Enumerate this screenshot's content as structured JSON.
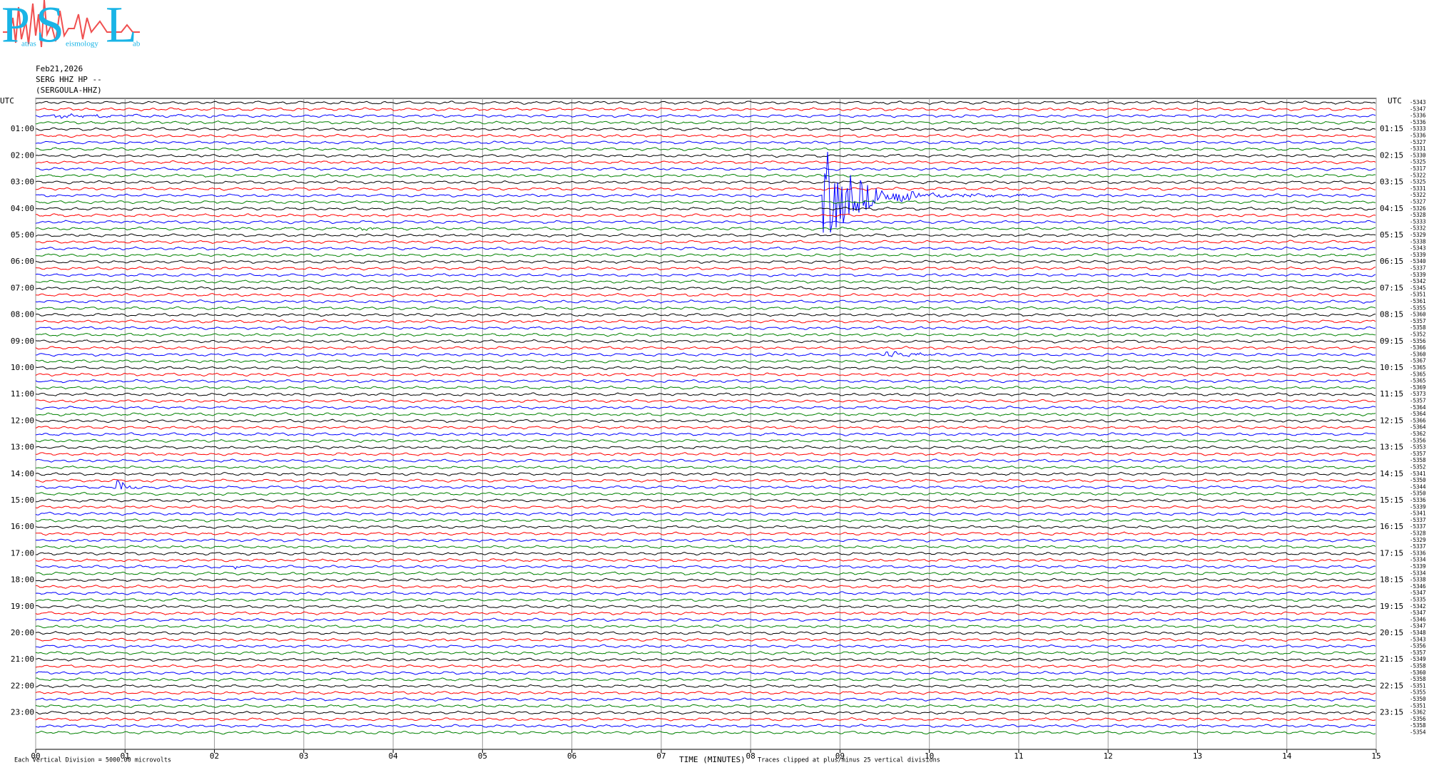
{
  "chart_data": {
    "type": "helicorder",
    "logo": {
      "letters": [
        "P",
        "S",
        "L"
      ],
      "words": [
        "atras",
        "eismology",
        "ab"
      ]
    },
    "date": "Feb21,2026",
    "station": "SERG HHZ HP --",
    "station_name": "(SERGOULA-HHZ)",
    "left_header": "UTC",
    "right_header": "UTC",
    "left_labels": [
      "01:00",
      "02:00",
      "03:00",
      "04:00",
      "05:00",
      "06:00",
      "07:00",
      "08:00",
      "09:00",
      "10:00",
      "11:00",
      "12:00",
      "13:00",
      "14:00",
      "15:00",
      "16:00",
      "17:00",
      "18:00",
      "19:00",
      "20:00",
      "21:00",
      "22:00",
      "23:00"
    ],
    "right_labels": [
      "01:15",
      "02:15",
      "03:15",
      "04:15",
      "05:15",
      "06:15",
      "07:15",
      "08:15",
      "09:15",
      "10:15",
      "11:15",
      "12:15",
      "13:15",
      "14:15",
      "15:15",
      "16:15",
      "17:15",
      "18:15",
      "19:15",
      "20:15",
      "21:15",
      "22:15",
      "23:15"
    ],
    "trace_offsets": [
      -5343,
      -5347,
      -5336,
      -5336,
      -5333,
      -5336,
      -5327,
      -5331,
      -5330,
      -5325,
      -5317,
      -5322,
      -5325,
      -5331,
      -5322,
      -5327,
      -5326,
      -5328,
      -5333,
      -5332,
      -5329,
      -5338,
      -5343,
      -5339,
      -5340,
      -5337,
      -5339,
      -5342,
      -5345,
      -5351,
      -5361,
      -5355,
      -5360,
      -5357,
      -5358,
      -5352,
      -5356,
      -5366,
      -5360,
      -5367,
      -5365,
      -5365,
      -5365,
      -5369,
      -5373,
      -5357,
      -5364,
      -5364,
      -5366,
      -5364,
      -5362,
      -5356,
      -5353,
      -5357,
      -5358,
      -5352,
      -5341,
      -5350,
      -5344,
      -5350,
      -5336,
      -5339,
      -5341,
      -5337,
      -5337,
      -5328,
      -5329,
      -5337,
      -5336,
      -5334,
      -5339,
      -5334,
      -5338,
      -5346,
      -5347,
      -5335,
      -5342,
      -5347,
      -5346,
      -5347,
      -5348,
      -5343,
      -5356,
      -5357,
      -5349,
      -5358,
      -5360,
      -5358,
      -5351,
      -5355,
      -5350,
      -5351,
      -5362,
      -5356,
      -5358,
      -5354
    ],
    "trace_colors": [
      "#000000",
      "#ff0000",
      "#0000ff",
      "#008000"
    ],
    "xlim": [
      0,
      15
    ],
    "xticks": [
      {
        "value": 0,
        "label": "00"
      },
      {
        "value": 1,
        "label": "01"
      },
      {
        "value": 2,
        "label": "02"
      },
      {
        "value": 3,
        "label": "03"
      },
      {
        "value": 4,
        "label": "04"
      },
      {
        "value": 5,
        "label": "05"
      },
      {
        "value": 6,
        "label": "06"
      },
      {
        "value": 7,
        "label": "07"
      },
      {
        "value": 8,
        "label": "08"
      },
      {
        "value": 9,
        "label": "09"
      },
      10,
      11,
      12,
      13,
      14,
      15
    ],
    "xlabel": "TIME (MINUTES)",
    "scale_note": "Each Vertical Division = 5000.00 microvolts",
    "clip_note": "Traces clipped at plus/minus 25 vertical divisions",
    "grid": true
  }
}
